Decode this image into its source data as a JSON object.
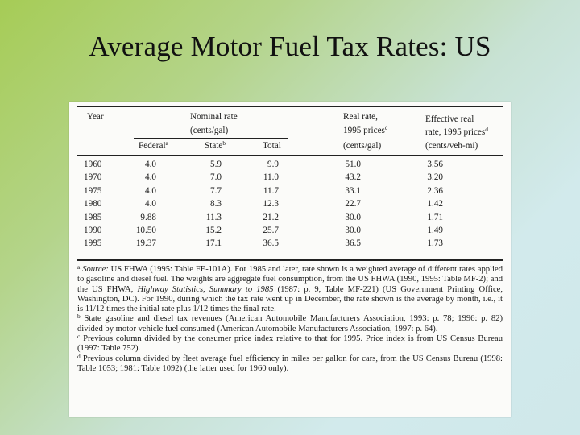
{
  "title": "Average Motor Fuel Tax Rates:  US",
  "table": {
    "headers": {
      "year": "Year",
      "nominal_line1": "Nominal rate",
      "nominal_line2": "(cents/gal)",
      "federal": "Federal",
      "federal_sup": "a",
      "state": "State",
      "state_sup": "b",
      "total": "Total",
      "real_line1": "Real rate,",
      "real_line2": "1995 prices",
      "real_sup": "c",
      "real_line3": "(cents/gal)",
      "eff_line1": "Effective real",
      "eff_line2": "rate, 1995 prices",
      "eff_sup": "d",
      "eff_line3": "(cents/veh-mi)"
    },
    "rows": [
      {
        "year": "1960",
        "federal": "4.0",
        "state": "5.9",
        "total": "9.9",
        "real": "51.0",
        "effective": "3.56"
      },
      {
        "year": "1970",
        "federal": "4.0",
        "state": "7.0",
        "total": "11.0",
        "real": "43.2",
        "effective": "3.20"
      },
      {
        "year": "1975",
        "federal": "4.0",
        "state": "7.7",
        "total": "11.7",
        "real": "33.1",
        "effective": "2.36"
      },
      {
        "year": "1980",
        "federal": "4.0",
        "state": "8.3",
        "total": "12.3",
        "real": "22.7",
        "effective": "1.42"
      },
      {
        "year": "1985",
        "federal": "9.88",
        "state": "11.3",
        "total": "21.2",
        "real": "30.0",
        "effective": "1.71"
      },
      {
        "year": "1990",
        "federal": "10.50",
        "state": "15.2",
        "total": "25.7",
        "real": "30.0",
        "effective": "1.49"
      },
      {
        "year": "1995",
        "federal": "19.37",
        "state": "17.1",
        "total": "36.5",
        "real": "36.5",
        "effective": "1.73"
      }
    ]
  },
  "footnotes": {
    "a_mark": "a",
    "a_source_label": "Source:",
    "a_text1": " US FHWA (1995: Table FE-101A). For 1985 and later, rate shown is a weighted average of different rates applied to gasoline and diesel fuel. The weights are aggregate fuel consumption, from the US FHWA (1990, 1995: Table MF-2); and the US FHWA, ",
    "a_italic": "Highway Statistics, Summary to 1985",
    "a_text2": " (1987: p. 9, Table MF-221) (US Government Printing Office, Washington, DC). For 1990, during which the tax rate went up in December, the rate shown is the average by month, i.e., it is 11/12 times the initial rate plus 1/12 times the final rate.",
    "b_mark": "b",
    "b_text": " State gasoline and diesel tax revenues (American Automobile Manufacturers Association, 1993: p. 78; 1996: p. 82) divided by motor vehicle fuel consumed (American Automobile Manufacturers Association, 1997: p. 64).",
    "c_mark": "c",
    "c_text": " Previous column divided by the consumer price index relative to that for 1995. Price index is from US Census Bureau (1997: Table 752).",
    "d_mark": "d",
    "d_text": " Previous column divided by fleet average fuel efficiency in miles per gallon for cars, from the US Census Bureau (1998: Table 1053; 1981: Table 1092) (the latter used for 1960 only)."
  }
}
